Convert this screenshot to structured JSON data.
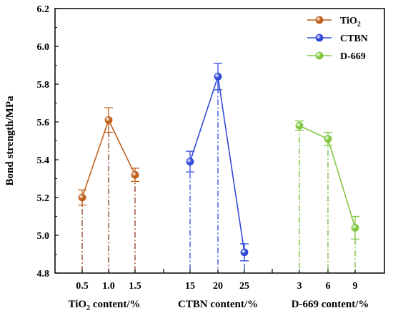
{
  "chart_data": {
    "type": "scatter",
    "ylabel": "Bond strength/MPa",
    "ylim": [
      4.8,
      6.2
    ],
    "yticks": [
      "4.8",
      "5.0",
      "5.2",
      "5.4",
      "5.6",
      "5.8",
      "6.0",
      "6.2"
    ],
    "legend_position": "top-right",
    "groups": [
      {
        "name": "TiO",
        "sub": "2",
        "xlabel_pre": "TiO",
        "xlabel_sub": "2",
        "xlabel_post": " content/%",
        "color": "#C0601A",
        "drop_color": "#8B3A1E",
        "categories": [
          "0.5",
          "1.0",
          "1.5"
        ],
        "values": [
          5.2,
          5.61,
          5.32
        ],
        "errors": [
          0.04,
          0.065,
          0.035
        ]
      },
      {
        "name": "CTBN",
        "sub": "",
        "xlabel_pre": "CTBN content/%",
        "xlabel_sub": "",
        "xlabel_post": "",
        "color": "#3048D8",
        "drop_color": "#3048D8",
        "categories": [
          "15",
          "20",
          "25"
        ],
        "values": [
          5.39,
          5.84,
          4.91
        ],
        "errors": [
          0.055,
          0.07,
          0.045
        ]
      },
      {
        "name": "D-669",
        "sub": "",
        "xlabel_pre": "D-669 content/%",
        "xlabel_sub": "",
        "xlabel_post": "",
        "color": "#80C840",
        "drop_color": "#70B830",
        "categories": [
          "3",
          "6",
          "9"
        ],
        "values": [
          5.58,
          5.51,
          5.04
        ],
        "errors": [
          0.025,
          0.035,
          0.06
        ]
      }
    ]
  }
}
